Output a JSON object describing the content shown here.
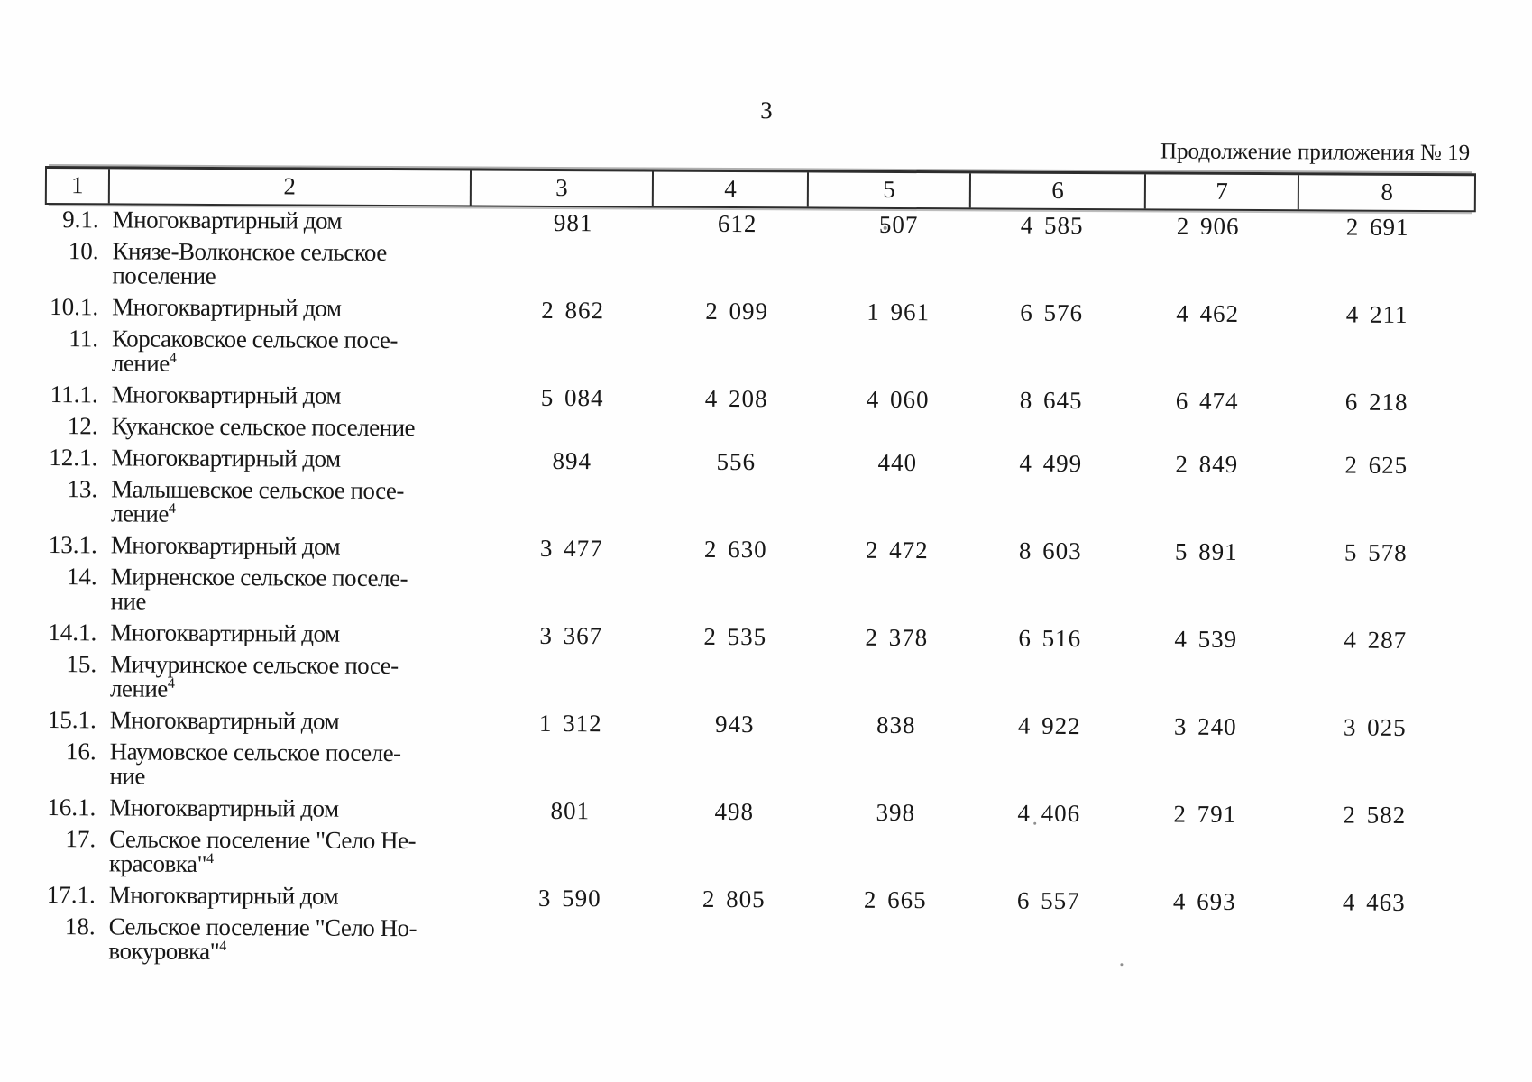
{
  "page": {
    "number": "3",
    "continuation_note": "Продолжение приложения № 19"
  },
  "table": {
    "column_headers": [
      "1",
      "2",
      "3",
      "4",
      "5",
      "6",
      "7",
      "8"
    ],
    "rows": [
      {
        "num": "9.1.",
        "lines": [
          "Многоквартирный дом"
        ],
        "sup": "",
        "values": [
          "981",
          "612",
          "507",
          "4 585",
          "2 906",
          "2 691"
        ]
      },
      {
        "num": "10.",
        "lines": [
          "Князе-Волконское сельское",
          "поселение"
        ],
        "sup": "",
        "values": []
      },
      {
        "num": "10.1.",
        "lines": [
          "Многоквартирный дом"
        ],
        "sup": "",
        "values": [
          "2 862",
          "2 099",
          "1 961",
          "6 576",
          "4 462",
          "4 211"
        ]
      },
      {
        "num": "11.",
        "lines": [
          "Корсаковское сельское посе-",
          "ление"
        ],
        "sup": "4",
        "values": []
      },
      {
        "num": "11.1.",
        "lines": [
          "Многоквартирный дом"
        ],
        "sup": "",
        "values": [
          "5 084",
          "4 208",
          "4 060",
          "8 645",
          "6 474",
          "6 218"
        ]
      },
      {
        "num": "12.",
        "lines": [
          "Куканское сельское поселение"
        ],
        "sup": "",
        "values": []
      },
      {
        "num": "12.1.",
        "lines": [
          "Многоквартирный дом"
        ],
        "sup": "",
        "values": [
          "894",
          "556",
          "440",
          "4 499",
          "2 849",
          "2 625"
        ]
      },
      {
        "num": "13.",
        "lines": [
          "Малышевское сельское посе-",
          "ление"
        ],
        "sup": "4",
        "values": []
      },
      {
        "num": "13.1.",
        "lines": [
          "Многоквартирный дом"
        ],
        "sup": "",
        "values": [
          "3 477",
          "2 630",
          "2 472",
          "8 603",
          "5 891",
          "5 578"
        ]
      },
      {
        "num": "14.",
        "lines": [
          "Мирненское сельское поселе-",
          "ние"
        ],
        "sup": "",
        "values": []
      },
      {
        "num": "14.1.",
        "lines": [
          "Многоквартирный дом"
        ],
        "sup": "",
        "values": [
          "3 367",
          "2 535",
          "2 378",
          "6 516",
          "4 539",
          "4 287"
        ]
      },
      {
        "num": "15.",
        "lines": [
          "Мичуринское сельское посе-",
          "ление"
        ],
        "sup": "4",
        "values": []
      },
      {
        "num": "15.1.",
        "lines": [
          "Многоквартирный дом"
        ],
        "sup": "",
        "values": [
          "1 312",
          "943",
          "838",
          "4 922",
          "3 240",
          "3 025"
        ]
      },
      {
        "num": "16.",
        "lines": [
          "Наумовское сельское поселе-",
          "ние"
        ],
        "sup": "",
        "values": []
      },
      {
        "num": "16.1.",
        "lines": [
          "Многоквартирный дом"
        ],
        "sup": "",
        "values": [
          "801",
          "498",
          "398",
          "4 406",
          "2 791",
          "2 582"
        ]
      },
      {
        "num": "17.",
        "lines": [
          "Сельское поселение \"Село Не-",
          "красовка\""
        ],
        "sup": "4",
        "values": []
      },
      {
        "num": "17.1.",
        "lines": [
          "Многоквартирный дом"
        ],
        "sup": "",
        "values": [
          "3 590",
          "2 805",
          "2 665",
          "6 557",
          "4 693",
          "4 463"
        ]
      },
      {
        "num": "18.",
        "lines": [
          "Сельское поселение \"Село Но-",
          "вокуровка\""
        ],
        "sup": "4",
        "values": []
      }
    ]
  },
  "colors": {
    "ink": "#171717",
    "paper": "#fefefe",
    "border": "#2d2d2d"
  }
}
